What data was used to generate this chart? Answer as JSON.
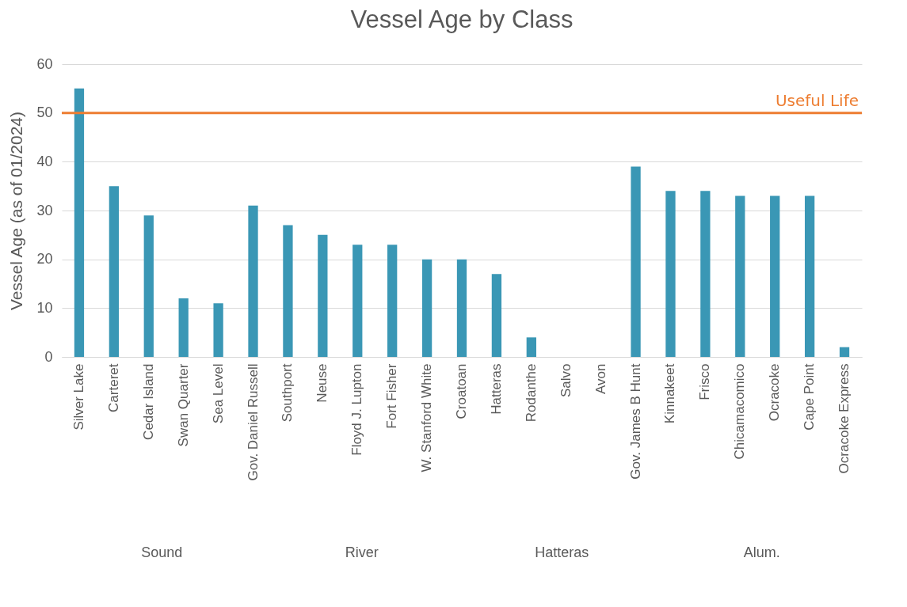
{
  "chart_data": {
    "type": "bar",
    "title": "Vessel Age by Class",
    "ylabel": "Vessel Age (as of 01/2024)",
    "categories": [
      "Silver Lake",
      "Carteret",
      "Cedar Island",
      "Swan Quarter",
      "Sea Level",
      "Gov. Daniel Russell",
      "Southport",
      "Neuse",
      "Floyd J. Lupton",
      "Fort Fisher",
      "W. Stanford White",
      "Croatoan",
      "Hatteras",
      "Rodanthe",
      "Salvo",
      "Avon",
      "Gov. James B Hunt",
      "Kinnakeet",
      "Frisco",
      "Chicamacomico",
      "Ocracoke",
      "Cape Point",
      "Ocracoke Express"
    ],
    "values": [
      55,
      35,
      29,
      12,
      11,
      31,
      27,
      25,
      23,
      23,
      20,
      20,
      17,
      4,
      null,
      null,
      39,
      34,
      34,
      33,
      33,
      33,
      2
    ],
    "color": "#3a97b5",
    "ylim": [
      0,
      60
    ],
    "yticks": [
      0,
      10,
      20,
      30,
      40,
      50,
      60
    ],
    "grid": "y",
    "legend": false,
    "ref_lines": [
      {
        "axis": "y",
        "value": 50,
        "label": "Useful Life",
        "color": "#ed7d31"
      }
    ],
    "annotations": [
      "Sound",
      "River",
      "Hatteras",
      "Alum."
    ]
  }
}
